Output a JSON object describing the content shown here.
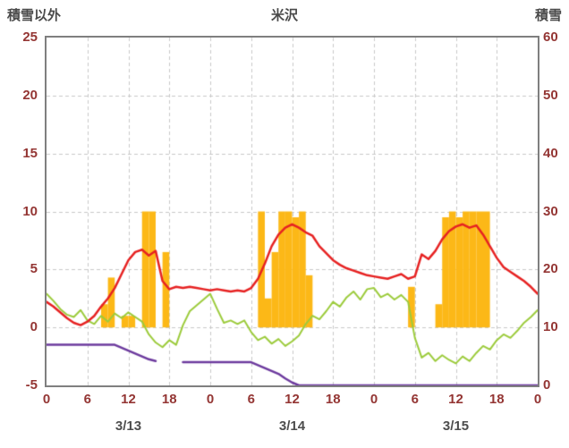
{
  "header": {
    "left_axis_title": "積雪以外",
    "chart_title": "米沢",
    "right_axis_title": "積雪"
  },
  "chart_data": {
    "type": "mixed-bar-line",
    "title": "米沢",
    "background": "#ffffff",
    "border_color": "#7f7f7f",
    "grid": {
      "on": true,
      "color": "#c9c9c9",
      "dash": [
        4,
        3
      ],
      "x_step_hours": 6,
      "y_step_left": 5
    },
    "text_colors": {
      "axis_numbers": "#943634",
      "titles": "#4a4a4a",
      "dates": "#4d4d4d"
    },
    "x_axis": {
      "unit": "hour",
      "min": 0,
      "max": 72,
      "tick_interval": 6,
      "tick_labels": [
        "0",
        "6",
        "12",
        "18",
        "0",
        "6",
        "12",
        "18",
        "0",
        "6",
        "12",
        "18",
        "0"
      ],
      "day_labels": [
        "3/13",
        "3/14",
        "3/15"
      ]
    },
    "left_axis": {
      "title": "積雪以外",
      "min": -5,
      "max": 25,
      "tick_step": 5,
      "tick_labels": [
        "25",
        "20",
        "15",
        "10",
        "5",
        "0",
        "-5"
      ]
    },
    "right_axis": {
      "title": "積雪",
      "min": 0,
      "max": 60,
      "tick_step": 10,
      "tick_labels": [
        "60",
        "50",
        "40",
        "30",
        "20",
        "10",
        "0"
      ]
    },
    "series": [
      {
        "name": "sunshine-bars",
        "type": "bar",
        "axis": "left",
        "color": "#fcb817",
        "values": [
          0,
          0,
          0,
          0,
          0,
          0,
          0,
          0,
          2,
          4.3,
          0,
          1,
          1,
          0,
          10,
          10,
          0,
          6.5,
          0,
          0,
          0,
          0,
          0,
          0,
          0,
          0,
          0,
          0,
          0,
          0,
          0,
          10,
          2.5,
          6.5,
          10,
          10,
          9.5,
          10,
          4.5,
          0,
          0,
          0,
          0,
          0,
          0,
          0,
          0,
          0,
          0,
          0,
          0,
          0,
          0,
          3.5,
          0,
          0,
          0,
          2,
          9.5,
          10,
          9.5,
          10,
          10,
          10,
          10,
          0,
          0,
          0,
          0,
          0,
          0,
          0
        ]
      },
      {
        "name": "temperature-line",
        "type": "line",
        "axis": "left",
        "color": "#e62222",
        "width": 2.5,
        "values": [
          2.2,
          1.8,
          1.3,
          0.8,
          0.4,
          0.2,
          0.5,
          1.0,
          1.8,
          2.5,
          3.4,
          4.6,
          5.8,
          6.5,
          6.7,
          6.2,
          6.6,
          4.0,
          3.3,
          3.5,
          3.4,
          3.5,
          3.4,
          3.3,
          3.2,
          3.3,
          3.2,
          3.1,
          3.2,
          3.1,
          3.4,
          4.2,
          5.5,
          7.0,
          8.0,
          8.6,
          8.9,
          8.6,
          8.2,
          7.9,
          7.0,
          6.4,
          5.8,
          5.4,
          5.1,
          4.9,
          4.7,
          4.5,
          4.4,
          4.3,
          4.2,
          4.4,
          4.6,
          4.2,
          4.4,
          6.3,
          5.9,
          6.6,
          7.6,
          8.3,
          8.7,
          8.9,
          8.6,
          8.8,
          8.0,
          7.0,
          6.0,
          5.2,
          4.8,
          4.4,
          4.0,
          3.5,
          2.9
        ]
      },
      {
        "name": "green-line",
        "type": "line",
        "axis": "left",
        "color": "#9ccb3c",
        "width": 2,
        "values": [
          2.9,
          2.3,
          1.6,
          1.1,
          0.9,
          1.5,
          0.6,
          0.3,
          1.0,
          0.5,
          1.2,
          0.8,
          1.3,
          0.9,
          0.5,
          -0.6,
          -1.3,
          -1.7,
          -1.1,
          -1.5,
          0.2,
          1.4,
          1.9,
          2.4,
          2.9,
          1.6,
          0.4,
          0.6,
          0.3,
          0.6,
          -0.4,
          -1.1,
          -0.8,
          -1.4,
          -1.0,
          -1.6,
          -1.2,
          -0.7,
          0.3,
          1.0,
          0.7,
          1.4,
          2.2,
          1.8,
          2.6,
          3.1,
          2.4,
          3.3,
          3.4,
          2.6,
          2.9,
          2.4,
          2.8,
          2.2,
          -0.9,
          -2.6,
          -2.2,
          -2.9,
          -2.4,
          -2.8,
          -3.1,
          -2.5,
          -2.9,
          -2.2,
          -1.6,
          -1.9,
          -1.1,
          -0.6,
          -0.9,
          -0.3,
          0.4,
          0.9,
          1.5
        ]
      },
      {
        "name": "snow-depth-line",
        "type": "line",
        "axis": "right",
        "color": "#6d3b9e",
        "width": 2.5,
        "values": [
          7,
          7,
          7,
          7,
          7,
          7,
          7,
          7,
          7,
          7,
          7,
          6.5,
          6,
          5.5,
          5,
          4.5,
          4.2,
          null,
          null,
          null,
          4,
          4,
          4,
          4,
          4,
          4,
          4,
          4,
          4,
          4,
          4,
          3.5,
          3,
          2.5,
          2,
          1.2,
          0.5,
          0,
          0,
          0,
          0,
          0,
          0,
          0,
          0,
          0,
          0,
          0,
          0,
          0,
          0,
          0,
          0,
          0,
          0,
          0,
          0,
          0,
          0,
          0,
          0,
          0,
          0,
          0,
          0,
          0,
          0,
          0,
          0,
          0,
          0,
          0,
          0
        ]
      }
    ]
  }
}
